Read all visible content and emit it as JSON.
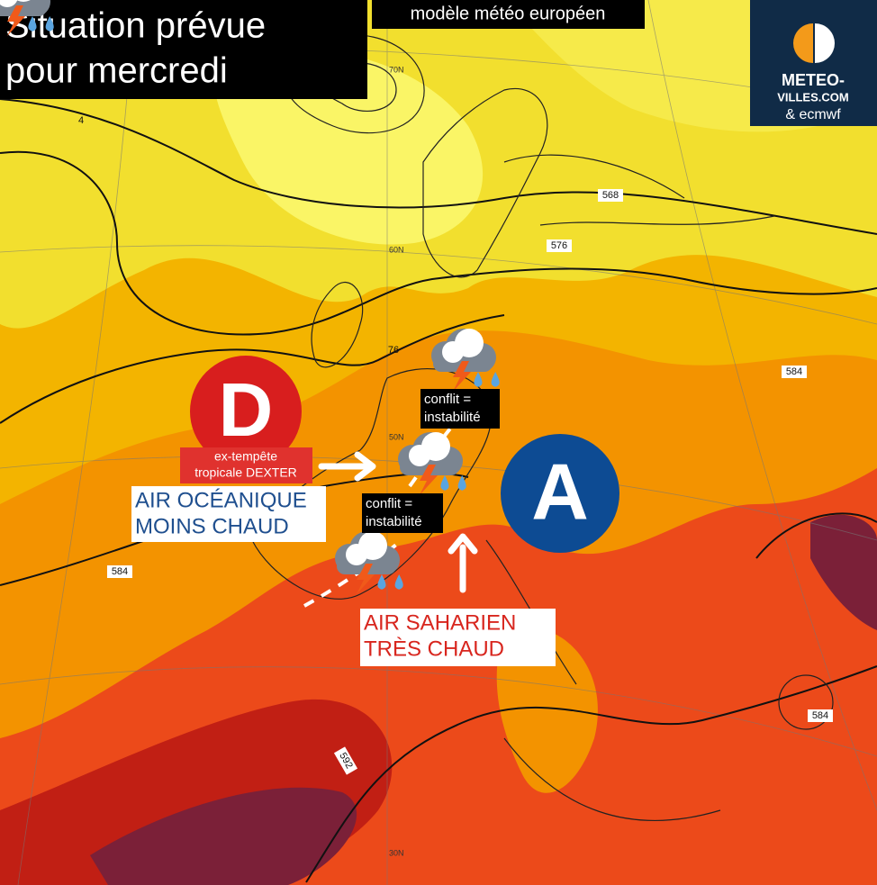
{
  "header": {
    "title_lines": [
      "Situation prévue",
      "pour mercredi"
    ],
    "model": "modèle météo européen"
  },
  "logo": {
    "lines": [
      "METEO-",
      "VILLES.COM",
      "& ecmwf"
    ]
  },
  "low": {
    "symbol": "D",
    "label_lines": [
      "ex-tempête",
      "tropicale DEXTER"
    ]
  },
  "high": {
    "symbol": "A"
  },
  "air_masses": [
    {
      "lines": [
        "AIR OCÉANIQUE",
        "MOINS CHAUD"
      ]
    },
    {
      "lines": [
        "AIR SAHARIEN",
        "TRÈS CHAUD"
      ]
    }
  ],
  "conflicts": [
    {
      "lines": [
        "conflit =",
        "instabilité"
      ]
    },
    {
      "lines": [
        "conflit =",
        "instabilité"
      ]
    }
  ],
  "contour_labels": [
    "568",
    "576",
    "584",
    "584",
    "584",
    "592",
    "76",
    "4"
  ],
  "latitude_labels": [
    "70N",
    "60N",
    "50N",
    "30N"
  ]
}
